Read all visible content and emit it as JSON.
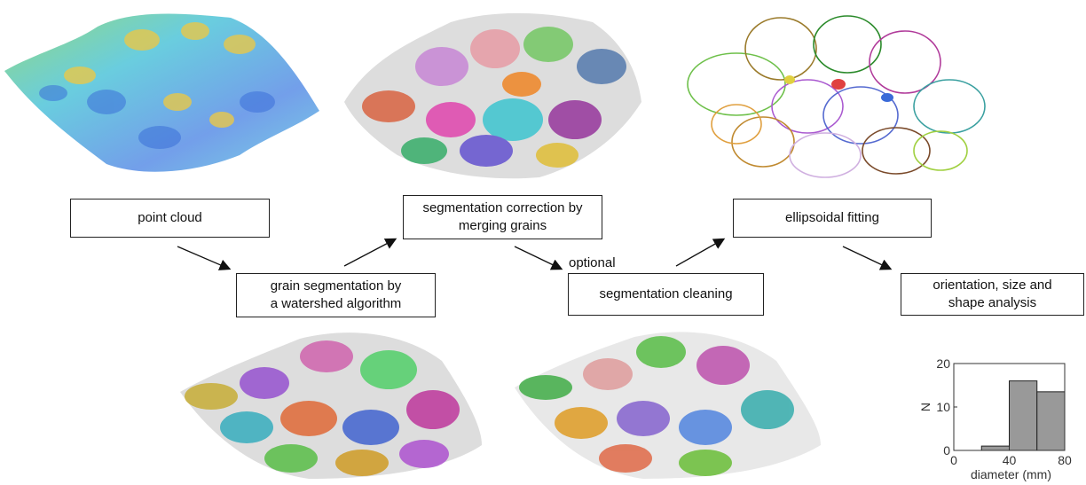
{
  "steps": {
    "point_cloud": "point cloud",
    "grain_segmentation": "grain segmentation by\na watershed algorithm",
    "segmentation_correction": "segmentation correction by\nmerging grains",
    "segmentation_cleaning": "segmentation cleaning",
    "ellipsoidal_fitting": "ellipsoidal fitting",
    "analysis": "orientation, size and\nshape analysis"
  },
  "optional_label": "optional",
  "chart_data": {
    "type": "bar",
    "bins": [
      [
        20,
        40
      ],
      [
        40,
        60
      ],
      [
        60,
        80
      ]
    ],
    "values": [
      1,
      16,
      13.5
    ],
    "xlabel": "diameter (mm)",
    "ylabel": "N",
    "xlim": [
      0,
      80
    ],
    "ylim": [
      0,
      20
    ],
    "xticks": [
      "0",
      "40",
      "80"
    ],
    "yticks": [
      "0",
      "10",
      "20"
    ],
    "bar_color": "#999999"
  }
}
